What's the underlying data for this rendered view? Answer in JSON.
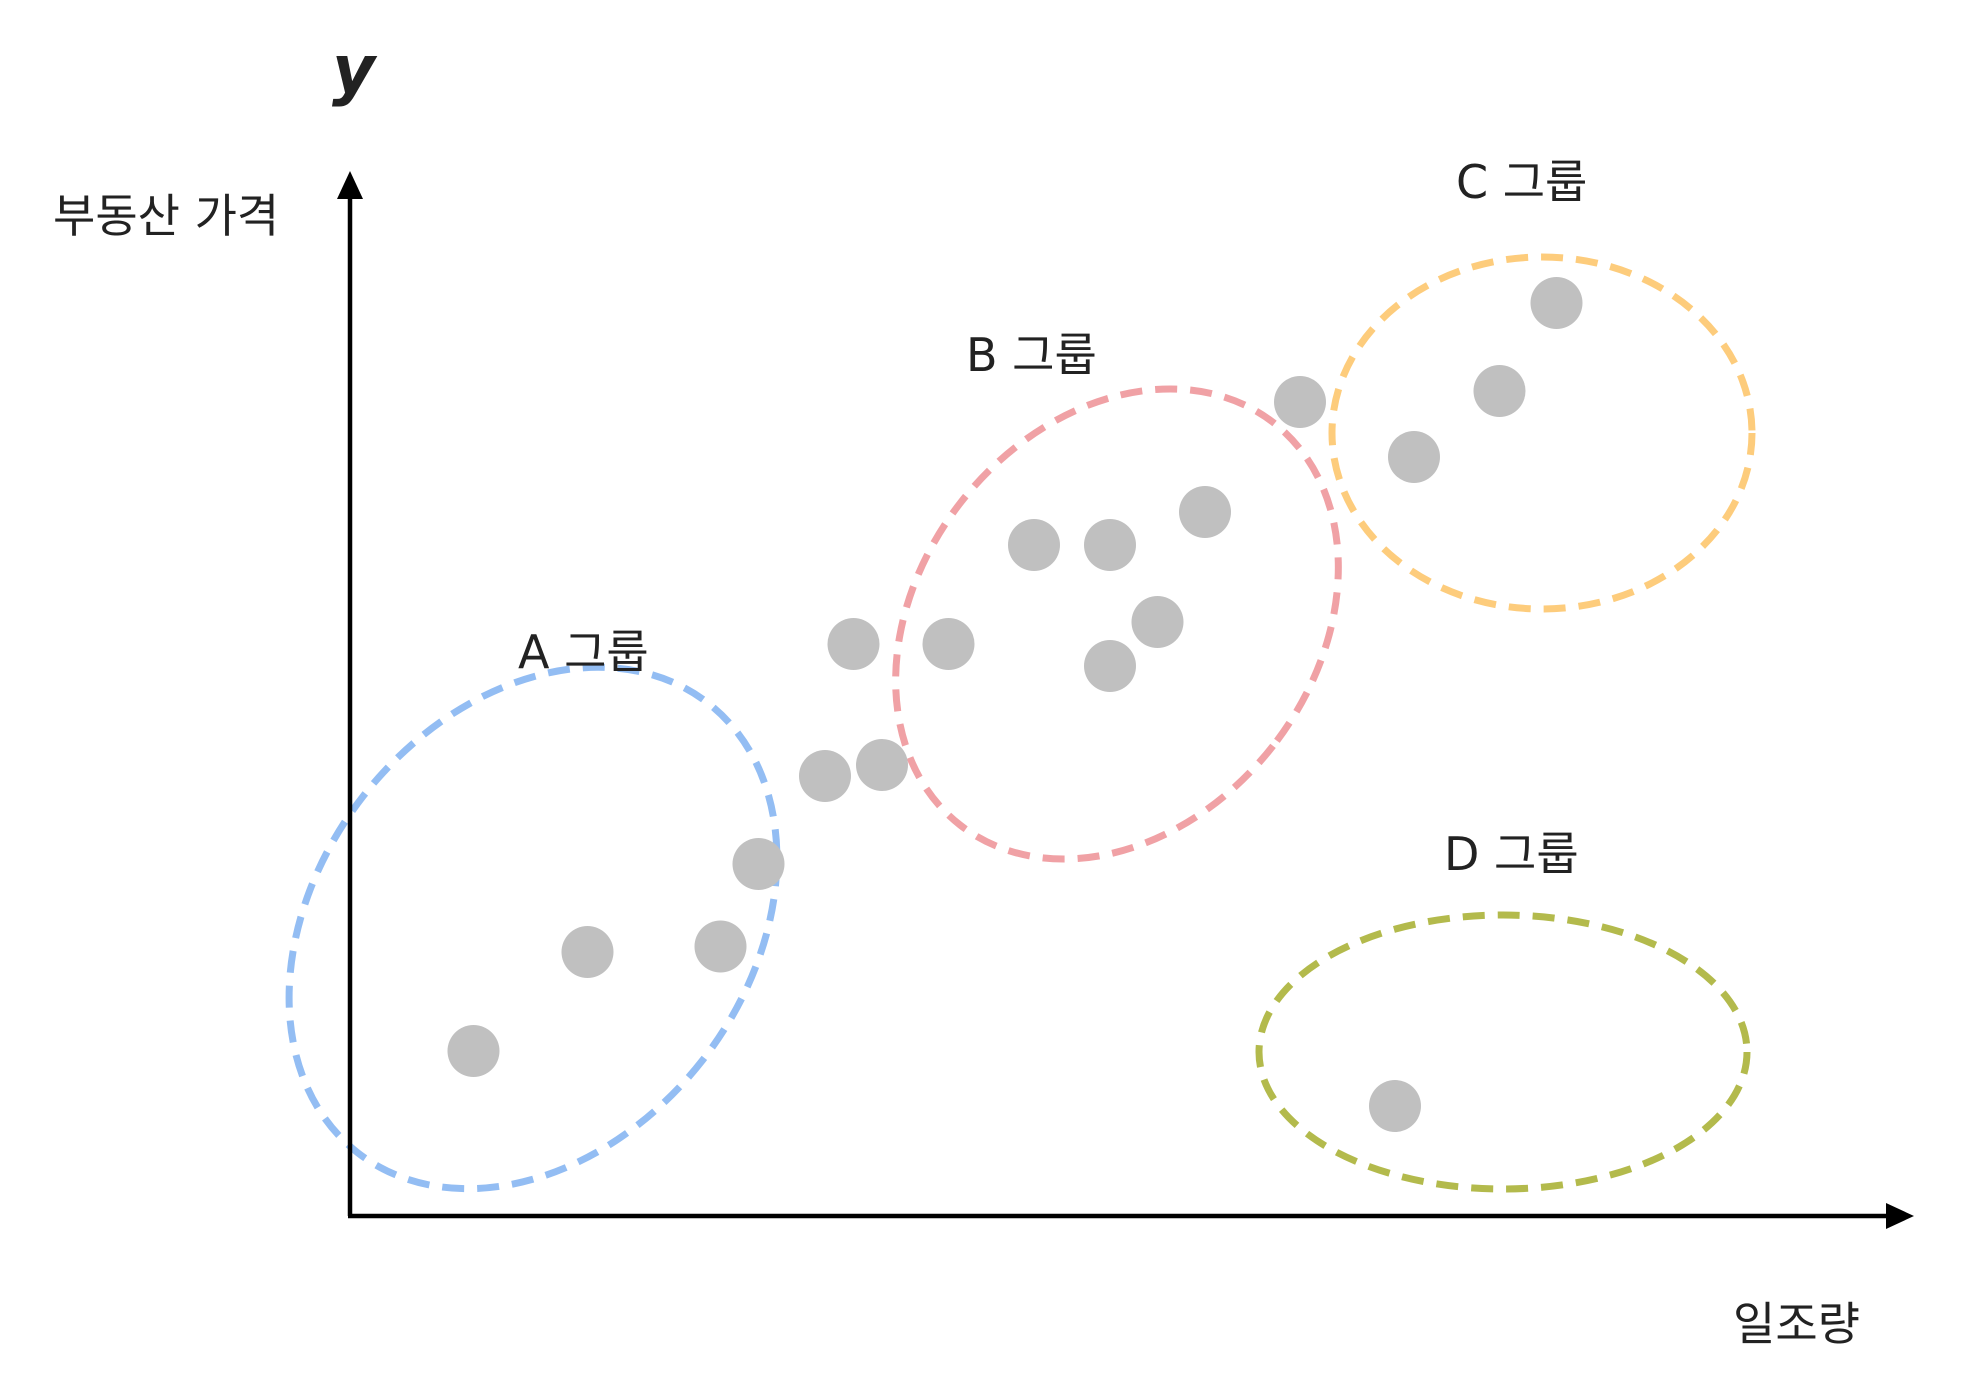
{
  "chart_data": {
    "type": "scatter",
    "title": "",
    "y_symbol": "y",
    "xlabel": "일조량",
    "ylabel": "부동산 가격",
    "grid": false,
    "legend": "none",
    "groups": [
      {
        "name": "A 그룹",
        "color": "#93bdf3",
        "points": [
          [
            1.3,
            1.5
          ],
          [
            2.5,
            2.4
          ],
          [
            3.9,
            2.45
          ],
          [
            4.3,
            3.2
          ],
          [
            5.0,
            4.0
          ]
        ]
      },
      {
        "name": "B 그룹",
        "color": "#f0a1a5",
        "points": [
          [
            5.6,
            4.1
          ],
          [
            5.3,
            5.2
          ],
          [
            6.3,
            5.2
          ],
          [
            7.2,
            6.1
          ],
          [
            8.0,
            6.1
          ],
          [
            8.5,
            5.4
          ],
          [
            8.0,
            5.0
          ],
          [
            9.0,
            6.4
          ]
        ]
      },
      {
        "name": "C 그룹",
        "color": "#fdcc7c",
        "points": [
          [
            10.0,
            7.4
          ],
          [
            11.2,
            6.9
          ],
          [
            12.1,
            7.5
          ],
          [
            12.7,
            8.3
          ]
        ]
      },
      {
        "name": "D 그룹",
        "color": "#b3ba4c",
        "points": [
          [
            11.0,
            1.0
          ]
        ]
      }
    ]
  }
}
